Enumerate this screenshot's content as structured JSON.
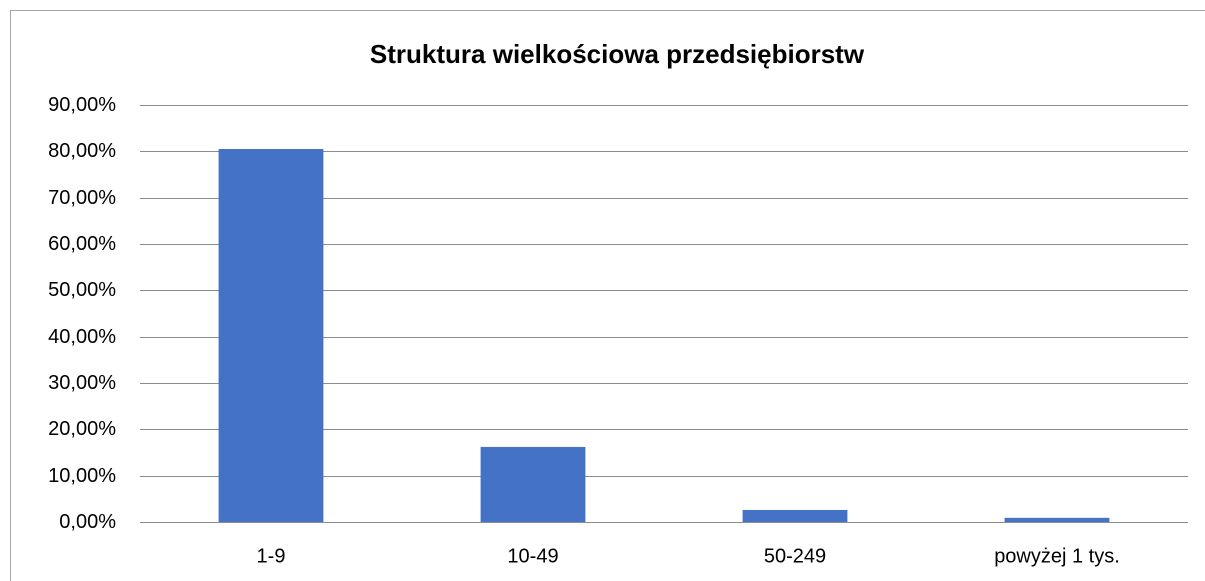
{
  "chart_data": {
    "type": "bar",
    "title": "Struktura wielkościowa przedsiębiorstw",
    "categories": [
      "1-9",
      "10-49",
      "50-249",
      "powyżej 1 tys."
    ],
    "values": [
      80.5,
      16.2,
      2.6,
      0.9
    ],
    "color": "#4472c4",
    "ylim": [
      0,
      90
    ],
    "yticks": [
      {
        "value": 0,
        "label": "0,00%"
      },
      {
        "value": 10,
        "label": "10,00%"
      },
      {
        "value": 20,
        "label": "20,00%"
      },
      {
        "value": 30,
        "label": "30,00%"
      },
      {
        "value": 40,
        "label": "40,00%"
      },
      {
        "value": 50,
        "label": "50,00%"
      },
      {
        "value": 60,
        "label": "60,00%"
      },
      {
        "value": 70,
        "label": "70,00%"
      },
      {
        "value": 80,
        "label": "80,00%"
      },
      {
        "value": 90,
        "label": "90,00%"
      }
    ],
    "grid": true
  }
}
